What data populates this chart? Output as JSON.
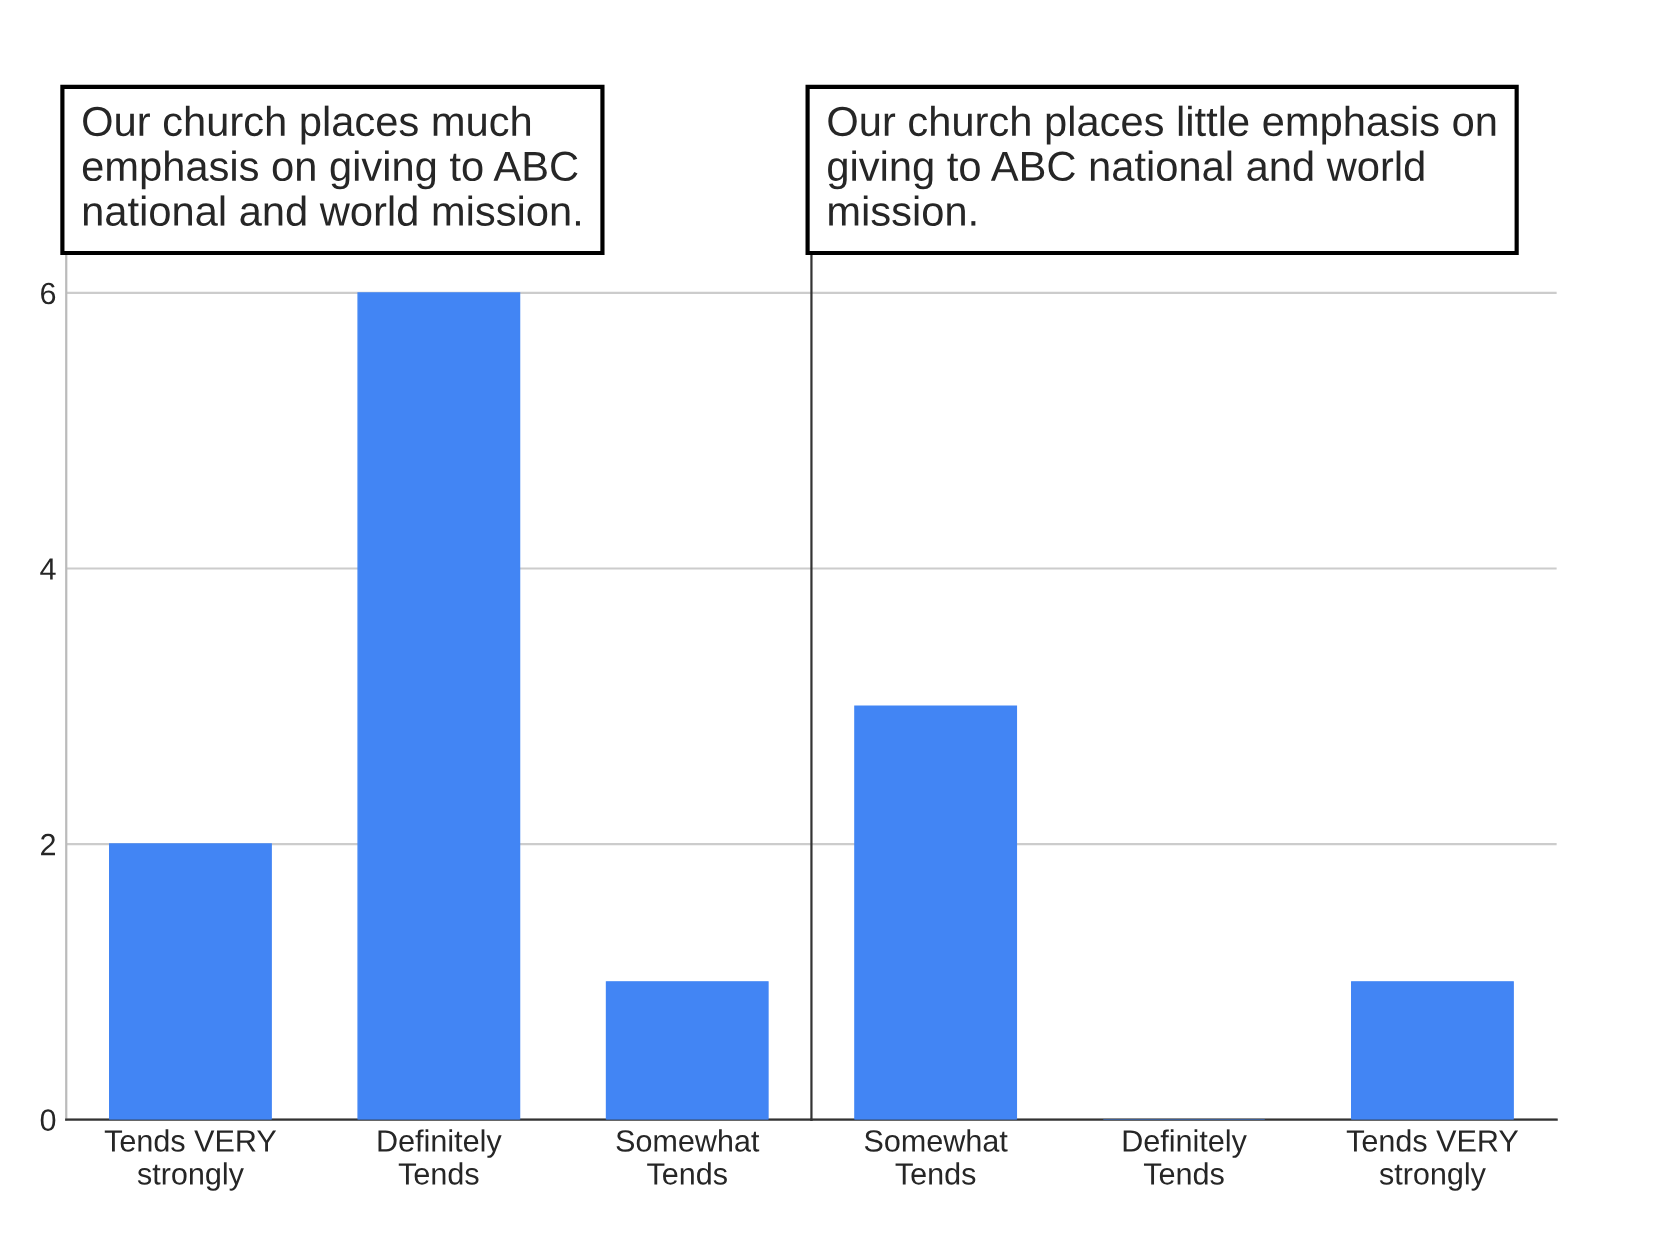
{
  "chart_data": [
    {
      "type": "bar",
      "title": "Our church places much\nemphasis on giving to ABC\nnational and world mission.",
      "categories": [
        "Tends VERY\nstrongly",
        "Definitely\nTends",
        "Somewhat\nTends"
      ],
      "values": [
        2,
        6,
        1
      ],
      "color": "#4285f4",
      "ylim": [
        0,
        6.3
      ],
      "yticks": [
        0,
        2,
        4,
        6
      ],
      "grid": "y",
      "legend": false
    },
    {
      "type": "bar",
      "title": "Our church places little emphasis on\ngiving to ABC national and world\nmission.",
      "categories": [
        "Somewhat\nTends",
        "Definitely\nTends",
        "Tends VERY\nstrongly"
      ],
      "values": [
        3,
        0,
        1
      ],
      "color": "#4285f4",
      "ylim": [
        0,
        6.3
      ],
      "yticks": [
        0,
        2,
        4,
        6
      ],
      "grid": "y",
      "legend": false,
      "tick_labels": "x"
    }
  ]
}
